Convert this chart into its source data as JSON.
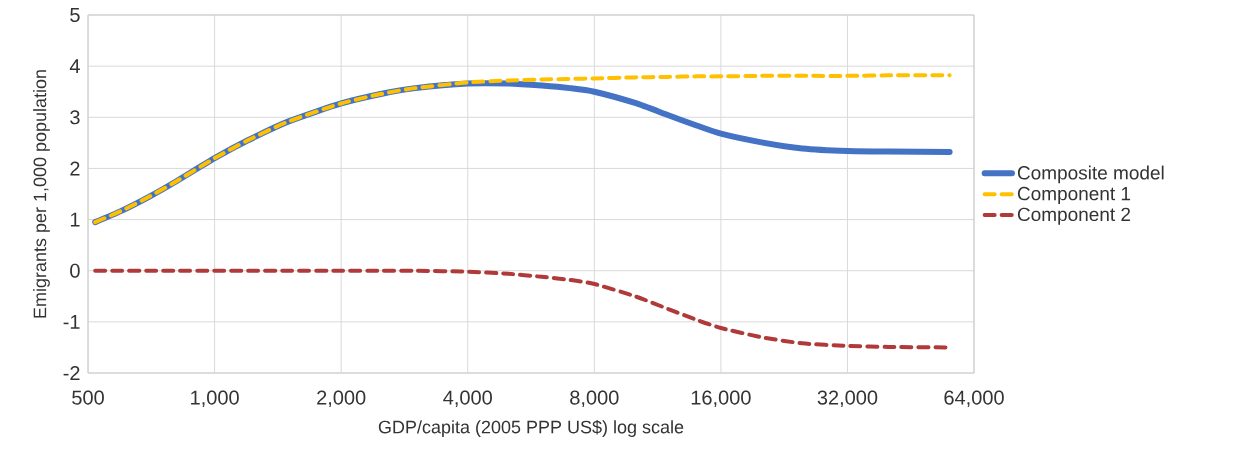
{
  "chart_data": {
    "type": "line",
    "xlabel": "GDP/capita  (2005 PPP US$) log scale",
    "ylabel": "Emigrants per 1,000 population",
    "x": [
      520,
      600,
      700,
      800,
      1000,
      1200,
      1500,
      2000,
      2500,
      3000,
      4000,
      5000,
      6000,
      7000,
      8000,
      10000,
      12000,
      14000,
      16000,
      20000,
      25000,
      32000,
      40000,
      56000
    ],
    "series": [
      {
        "name": "Composite model",
        "color": "#4472c4",
        "line_style": "solid",
        "values": [
          0.95,
          1.17,
          1.45,
          1.72,
          2.2,
          2.55,
          2.92,
          3.27,
          3.46,
          3.57,
          3.66,
          3.66,
          3.62,
          3.57,
          3.5,
          3.28,
          3.04,
          2.84,
          2.68,
          2.51,
          2.39,
          2.34,
          2.33,
          2.32
        ]
      },
      {
        "name": "Component 1",
        "color": "#ffc000",
        "line_style": "dashed",
        "values": [
          0.95,
          1.17,
          1.45,
          1.72,
          2.2,
          2.55,
          2.92,
          3.27,
          3.46,
          3.57,
          3.68,
          3.72,
          3.74,
          3.75,
          3.76,
          3.78,
          3.79,
          3.8,
          3.8,
          3.81,
          3.81,
          3.81,
          3.82,
          3.82
        ]
      },
      {
        "name": "Component 2",
        "color": "#b03a3a",
        "line_style": "dashed",
        "values": [
          0,
          0,
          0,
          0,
          0,
          0,
          0,
          0,
          0,
          0,
          -0.02,
          -0.06,
          -0.12,
          -0.18,
          -0.26,
          -0.5,
          -0.75,
          -0.96,
          -1.12,
          -1.3,
          -1.42,
          -1.47,
          -1.49,
          -1.5
        ]
      }
    ],
    "log": "x",
    "xlim": [
      500,
      64000
    ],
    "xticks": [
      500,
      {
        "value": 1000,
        "label": "1,000"
      },
      {
        "value": 2000,
        "label": "2,000"
      },
      {
        "value": 4000,
        "label": "4,000"
      },
      {
        "value": 8000,
        "label": "8,000"
      },
      {
        "value": 16000,
        "label": "16,000"
      },
      {
        "value": 32000,
        "label": "32,000"
      },
      {
        "value": 64000,
        "label": "64,000"
      }
    ],
    "ylim": [
      -2,
      5
    ],
    "yticks": [
      -2,
      -1,
      0,
      1,
      2,
      3,
      4,
      5
    ],
    "grid": true,
    "legend": "right"
  }
}
